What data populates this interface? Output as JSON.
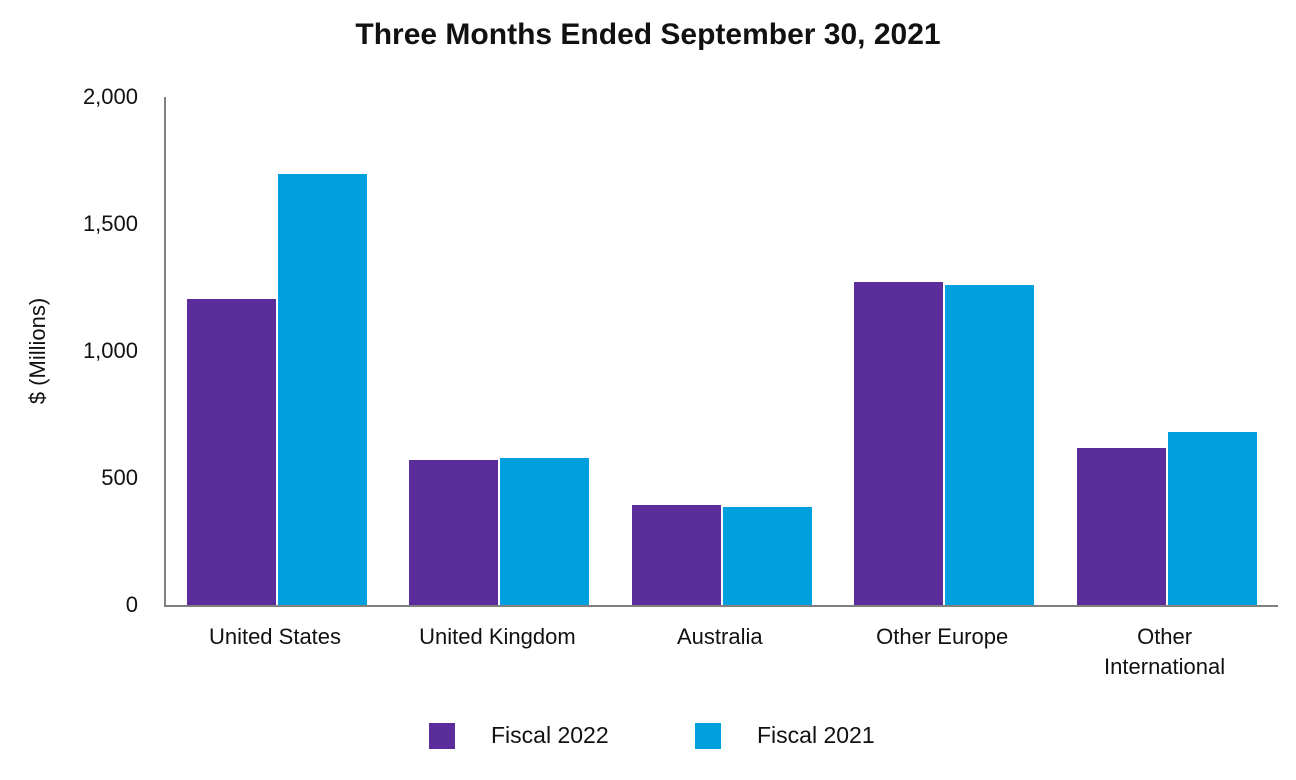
{
  "chart_data": {
    "type": "bar",
    "title": "Three Months Ended September 30, 2021",
    "ylabel": "$ (Millions)",
    "xlabel": "",
    "ylim": [
      0,
      2000
    ],
    "yticks": [
      0,
      500,
      1000,
      1500,
      2000
    ],
    "ytick_labels": [
      "0",
      "500",
      "1,000",
      "1,500",
      "2,000"
    ],
    "grid": false,
    "legend_position": "bottom",
    "categories": [
      "United States",
      "United Kingdom",
      "Australia",
      "Other Europe",
      "Other\nInternational"
    ],
    "series": [
      {
        "name": "Fiscal 2022",
        "color": "#5B2D9B",
        "values": [
          1205,
          570,
          395,
          1270,
          620
        ]
      },
      {
        "name": "Fiscal 2021",
        "color": "#00A0DF",
        "values": [
          1695,
          580,
          385,
          1260,
          680
        ]
      }
    ],
    "axis_color": "#808080",
    "background_color": "#FFFFFF",
    "text_color": "#111111"
  }
}
